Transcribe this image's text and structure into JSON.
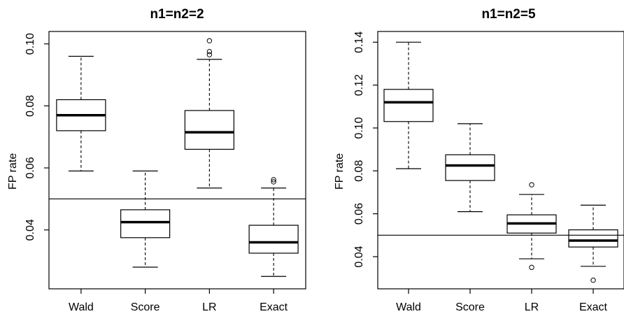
{
  "chart_data": [
    {
      "type": "box",
      "title": "n1=n2=2",
      "ylabel": "FP rate",
      "xlabel": "",
      "categories": [
        "Wald",
        "Score",
        "LR",
        "Exact"
      ],
      "ylim": [
        0.021,
        0.104
      ],
      "yticks": [
        0.04,
        0.06,
        0.08,
        0.1
      ],
      "ytick_labels": [
        "0.04",
        "0.06",
        "0.08",
        "0.10"
      ],
      "reference_line": 0.05,
      "grid": false,
      "boxes": [
        {
          "name": "Wald",
          "min": 0.059,
          "q1": 0.072,
          "median": 0.077,
          "q3": 0.082,
          "max": 0.096,
          "outliers": []
        },
        {
          "name": "Score",
          "min": 0.028,
          "q1": 0.0375,
          "median": 0.0425,
          "q3": 0.0465,
          "max": 0.059,
          "outliers": []
        },
        {
          "name": "LR",
          "min": 0.0535,
          "q1": 0.066,
          "median": 0.0715,
          "q3": 0.0785,
          "max": 0.095,
          "outliers": [
            0.0965,
            0.0975,
            0.101
          ]
        },
        {
          "name": "Exact",
          "min": 0.025,
          "q1": 0.0325,
          "median": 0.036,
          "q3": 0.0415,
          "max": 0.0535,
          "outliers": [
            0.0555,
            0.0562
          ]
        }
      ]
    },
    {
      "type": "box",
      "title": "n1=n2=5",
      "ylabel": "FP rate",
      "xlabel": "",
      "categories": [
        "Wald",
        "Score",
        "LR",
        "Exact"
      ],
      "ylim": [
        0.025,
        0.145
      ],
      "yticks": [
        0.04,
        0.06,
        0.08,
        0.1,
        0.12,
        0.14
      ],
      "ytick_labels": [
        "0.04",
        "0.06",
        "0.08",
        "0.10",
        "0.12",
        "0.14"
      ],
      "reference_line": 0.05,
      "grid": false,
      "boxes": [
        {
          "name": "Wald",
          "min": 0.081,
          "q1": 0.103,
          "median": 0.112,
          "q3": 0.118,
          "max": 0.14,
          "outliers": []
        },
        {
          "name": "Score",
          "min": 0.061,
          "q1": 0.0755,
          "median": 0.0825,
          "q3": 0.0875,
          "max": 0.102,
          "outliers": []
        },
        {
          "name": "LR",
          "min": 0.039,
          "q1": 0.051,
          "median": 0.0555,
          "q3": 0.0595,
          "max": 0.069,
          "outliers": [
            0.035,
            0.0735
          ]
        },
        {
          "name": "Exact",
          "min": 0.0355,
          "q1": 0.0445,
          "median": 0.0475,
          "q3": 0.0525,
          "max": 0.064,
          "outliers": [
            0.029
          ]
        }
      ]
    }
  ]
}
